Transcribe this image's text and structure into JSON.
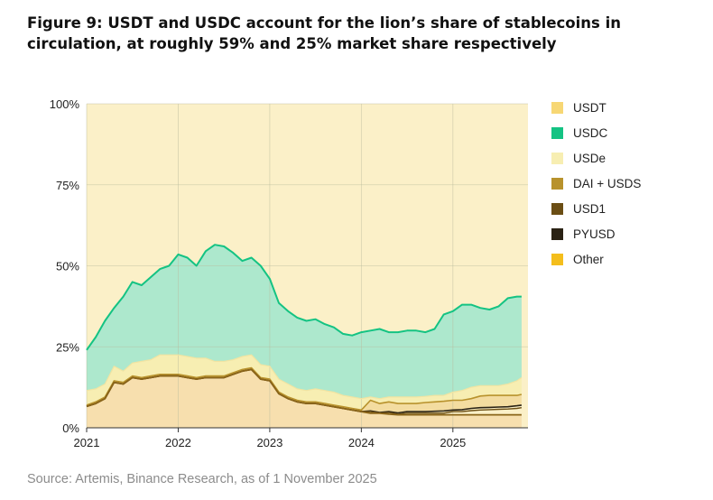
{
  "title": "Figure 9: USDT and USDC account for the lion’s share of stablecoins in circulation, at roughly 59% and 25% market share respectively",
  "source": "Source: Artemis, Binance Research, as of 1 November 2025",
  "colors": {
    "background": "#fbf0c8",
    "grid": "#b8ba9c",
    "USDT": "#f7d774",
    "USDC": "#14c383",
    "USDC_fill": "#ade8cd",
    "USDe": "#f7eeb2",
    "DAI + USDS": "#b8922c",
    "USD1": "#6b4e14",
    "PYUSD": "#2a2214",
    "Other": "#f4be1c",
    "bottom_fill": "#f7dfae"
  },
  "legend": [
    {
      "label": "USDT",
      "color": "#f7d774"
    },
    {
      "label": "USDC",
      "color": "#14c383"
    },
    {
      "label": "USDe",
      "color": "#f7eeb2"
    },
    {
      "label": "DAI + USDS",
      "color": "#b8922c"
    },
    {
      "label": "USD1",
      "color": "#6b4e14"
    },
    {
      "label": "PYUSD",
      "color": "#2a2214"
    },
    {
      "label": "Other",
      "color": "#f4be1c"
    }
  ],
  "chart_data": {
    "type": "area",
    "stacked": true,
    "normalized_percent": true,
    "x_tick_labels": [
      "2021",
      "2022",
      "2023",
      "2024",
      "2025"
    ],
    "y_tick_labels": [
      "0%",
      "25%",
      "50%",
      "75%",
      "100%"
    ],
    "ylim": [
      0,
      100
    ],
    "grid": true,
    "legend_position": "right",
    "x": [
      2021.0,
      2021.1,
      2021.2,
      2021.3,
      2021.4,
      2021.5,
      2021.6,
      2021.7,
      2021.8,
      2021.9,
      2022.0,
      2022.1,
      2022.2,
      2022.3,
      2022.4,
      2022.5,
      2022.6,
      2022.7,
      2022.8,
      2022.9,
      2023.0,
      2023.1,
      2023.2,
      2023.3,
      2023.4,
      2023.5,
      2023.6,
      2023.7,
      2023.8,
      2023.9,
      2024.0,
      2024.1,
      2024.2,
      2024.3,
      2024.4,
      2024.5,
      2024.6,
      2024.7,
      2024.8,
      2024.9,
      2025.0,
      2025.1,
      2025.2,
      2025.3,
      2025.4,
      2025.5,
      2025.6,
      2025.7,
      2025.75
    ],
    "cumulative_series": [
      {
        "name": "Other",
        "values": [
          0.0,
          0.0,
          0.0,
          0.0,
          0.0,
          0.0,
          0.0,
          0.0,
          0.0,
          0.0,
          0.0,
          0.0,
          0.0,
          0.0,
          0.0,
          0.0,
          0.0,
          0.0,
          0.0,
          0.0,
          0.0,
          0.0,
          0.0,
          0.0,
          0.0,
          0.0,
          0.0,
          0.0,
          0.0,
          0.0,
          0.0,
          0.0,
          0.0,
          0.0,
          0.0,
          0.0,
          0.0,
          0.0,
          0.0,
          0.0,
          0.0,
          0.0,
          0.0,
          0.0,
          0.0,
          0.0,
          0.0,
          0.0,
          0.0
        ]
      },
      {
        "name": "DAI + USDS",
        "values": [
          6.6,
          7.5,
          9.0,
          14.0,
          13.5,
          15.5,
          15.0,
          15.5,
          16.0,
          16.0,
          16.0,
          15.5,
          15.0,
          15.5,
          15.5,
          15.5,
          16.5,
          17.5,
          18.0,
          15.0,
          14.5,
          10.5,
          9.0,
          8.0,
          7.5,
          7.5,
          7.0,
          6.5,
          6.0,
          5.5,
          5.0,
          4.5,
          4.5,
          4.2,
          4.0,
          4.0,
          4.0,
          4.0,
          4.0,
          4.0,
          4.0,
          4.0,
          4.0,
          4.0,
          4.0,
          4.0,
          4.0,
          4.0,
          4.0
        ]
      },
      {
        "name": "USD1",
        "values": [
          6.6,
          7.5,
          9.0,
          14.0,
          13.5,
          15.5,
          15.0,
          15.5,
          16.0,
          16.0,
          16.0,
          15.5,
          15.0,
          15.5,
          15.5,
          15.5,
          16.5,
          17.5,
          18.0,
          15.0,
          14.5,
          10.5,
          9.0,
          8.0,
          7.5,
          7.5,
          7.0,
          6.5,
          6.0,
          5.5,
          5.0,
          5.0,
          4.5,
          4.7,
          4.2,
          4.5,
          4.5,
          4.5,
          4.5,
          4.5,
          5.0,
          5.0,
          5.3,
          5.5,
          5.6,
          5.7,
          5.8,
          6.0,
          6.2
        ]
      },
      {
        "name": "PYUSD",
        "values": [
          6.6,
          7.5,
          9.0,
          14.0,
          13.5,
          15.5,
          15.0,
          15.5,
          16.0,
          16.0,
          16.0,
          15.5,
          15.0,
          15.5,
          15.5,
          15.5,
          16.5,
          17.5,
          18.0,
          15.0,
          14.5,
          10.5,
          9.0,
          8.0,
          7.5,
          7.5,
          7.0,
          6.5,
          6.0,
          5.5,
          5.0,
          5.2,
          4.7,
          5.0,
          4.6,
          5.0,
          5.0,
          5.0,
          5.1,
          5.2,
          5.5,
          5.6,
          6.0,
          6.2,
          6.3,
          6.4,
          6.5,
          6.8,
          7.0
        ]
      },
      {
        "name": "DAI + USDS (top)",
        "values": [
          7.0,
          8.0,
          9.5,
          14.5,
          14.0,
          16.0,
          15.5,
          16.0,
          16.5,
          16.5,
          16.5,
          16.0,
          15.5,
          16.0,
          16.0,
          16.0,
          17.0,
          18.0,
          18.5,
          15.5,
          15.0,
          11.0,
          9.5,
          8.5,
          8.0,
          8.0,
          7.5,
          7.0,
          6.5,
          6.0,
          5.5,
          8.5,
          7.5,
          8.0,
          7.5,
          7.5,
          7.5,
          7.8,
          8.0,
          8.2,
          8.5,
          8.5,
          9.0,
          9.8,
          10.0,
          10.0,
          10.0,
          10.0,
          10.3
        ]
      },
      {
        "name": "USDe (top)",
        "values": [
          11.5,
          12.0,
          13.5,
          19.0,
          17.5,
          20.0,
          20.5,
          21.0,
          22.5,
          22.5,
          22.5,
          22.0,
          21.5,
          21.5,
          20.5,
          20.5,
          21.0,
          22.0,
          22.5,
          19.5,
          19.0,
          15.0,
          13.5,
          12.0,
          11.5,
          12.0,
          11.5,
          11.0,
          10.0,
          9.5,
          9.0,
          9.5,
          9.0,
          9.5,
          9.5,
          9.5,
          9.5,
          9.7,
          10.0,
          10.0,
          11.0,
          11.5,
          12.5,
          13.0,
          13.0,
          13.0,
          13.5,
          14.5,
          15.5
        ]
      },
      {
        "name": "USDC (top)",
        "values": [
          24.0,
          28.0,
          33.0,
          37.0,
          40.5,
          45.0,
          44.0,
          46.5,
          49.0,
          50.0,
          53.5,
          52.5,
          50.0,
          54.5,
          56.5,
          56.0,
          54.0,
          51.5,
          52.5,
          50.0,
          46.0,
          38.5,
          36.0,
          34.0,
          33.0,
          33.5,
          32.0,
          31.0,
          29.0,
          28.5,
          29.5,
          30.0,
          30.5,
          29.5,
          29.5,
          30.0,
          30.0,
          29.5,
          30.5,
          35.0,
          36.0,
          38.0,
          38.0,
          37.0,
          36.5,
          37.5,
          40.0,
          40.5,
          40.5
        ]
      },
      {
        "name": "USDT (top)",
        "values": [
          100,
          100,
          100,
          100,
          100,
          100,
          100,
          100,
          100,
          100,
          100,
          100,
          100,
          100,
          100,
          100,
          100,
          100,
          100,
          100,
          100,
          100,
          100,
          100,
          100,
          100,
          100,
          100,
          100,
          100,
          100,
          100,
          100,
          100,
          100,
          100,
          100,
          100,
          100,
          100,
          100,
          100,
          100,
          100,
          100,
          100,
          100,
          100,
          100
        ]
      }
    ]
  }
}
